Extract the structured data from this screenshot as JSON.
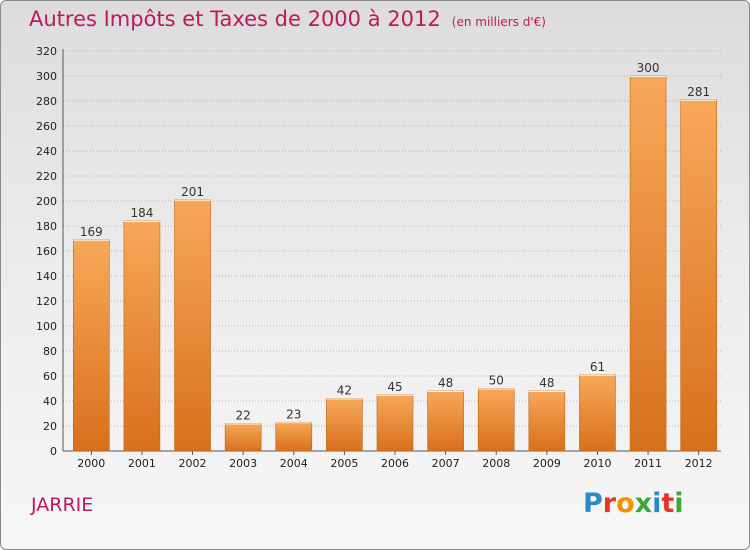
{
  "header": {
    "title": "Autres Impôts et Taxes de 2000 à 2012",
    "unit": "(en milliers d'€)"
  },
  "footer": {
    "city": "JARRIE",
    "logo": {
      "letters": [
        {
          "char": "P",
          "color": "#2d88c8"
        },
        {
          "char": "r",
          "color": "#e8342a"
        },
        {
          "char": "o",
          "color": "#f39200"
        },
        {
          "char": "x",
          "color": "#3aa935"
        },
        {
          "char": "i",
          "color": "#2d88c8"
        },
        {
          "char": "t",
          "color": "#e8342a"
        },
        {
          "char": "i",
          "color": "#3aa935"
        }
      ]
    }
  },
  "colors": {
    "bar_top": "#f7a85a",
    "bar_bottom": "#d8701c",
    "bar_edge": "#c2650f",
    "title": "#c0185c",
    "grid": "#b5b5b5"
  },
  "chart_data": {
    "type": "bar",
    "title": "Autres Impôts et Taxes de 2000 à 2012",
    "subtitle": "(en milliers d'€)",
    "xlabel": "",
    "ylabel": "",
    "categories": [
      "2000",
      "2001",
      "2002",
      "2003",
      "2004",
      "2005",
      "2006",
      "2007",
      "2008",
      "2009",
      "2010",
      "2011",
      "2012"
    ],
    "values": [
      169,
      184,
      201,
      22,
      23,
      42,
      45,
      48,
      50,
      48,
      61,
      300,
      281
    ],
    "ylim": [
      0,
      320
    ],
    "yticks": [
      0,
      20,
      40,
      60,
      80,
      100,
      120,
      140,
      160,
      180,
      200,
      220,
      240,
      260,
      280,
      300,
      320
    ],
    "grid": "horizontal",
    "legend": "none"
  }
}
